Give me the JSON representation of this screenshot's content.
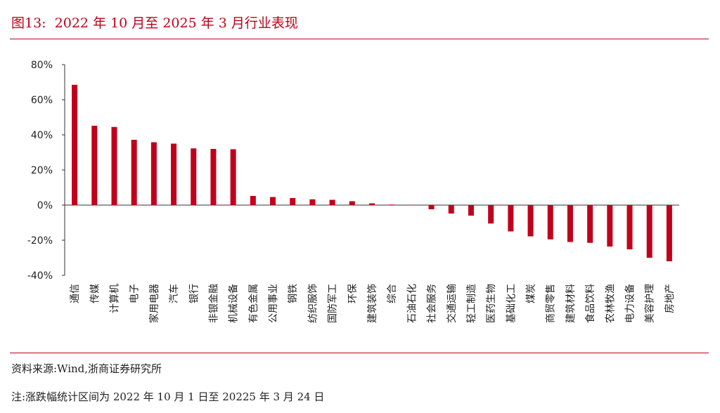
{
  "figure": {
    "title": "图13:  2022 年 10 月至 2025 年 3 月行业表现",
    "source": "资料来源:Wind,浙商证券研究所",
    "note": "注:涨跌幅统计区间为 2022 年 10 月 1 日至 20225 年 3 月 24 日"
  },
  "colors": {
    "accent": "#c0001a",
    "bar": "#c0001a",
    "axis": "#333333"
  },
  "chart_data": {
    "type": "bar",
    "title": "",
    "xlabel": "",
    "ylabel": "",
    "ylim": [
      -40,
      80
    ],
    "yticks": [
      80,
      60,
      40,
      20,
      0,
      -20,
      -40
    ],
    "ytick_labels": [
      "80%",
      "60%",
      "40%",
      "20%",
      "0%",
      "-20%",
      "-40%"
    ],
    "grid": false,
    "legend": "none",
    "categories": [
      "通信",
      "传媒",
      "计算机",
      "电子",
      "家用电器",
      "汽车",
      "银行",
      "非银金融",
      "机械设备",
      "有色金属",
      "公用事业",
      "钢铁",
      "纺织服饰",
      "国防军工",
      "环保",
      "建筑装饰",
      "综合",
      "石油石化",
      "社会服务",
      "交通运输",
      "轻工制造",
      "医药生物",
      "基础化工",
      "煤炭",
      "商贸零售",
      "建筑材料",
      "食品饮料",
      "农林牧渔",
      "电力设备",
      "美容护理",
      "房地产"
    ],
    "values": [
      68.5,
      45.2,
      44.5,
      37.2,
      35.8,
      35.0,
      32.3,
      32.0,
      31.8,
      5.2,
      4.6,
      4.0,
      3.3,
      3.0,
      2.2,
      1.0,
      0.3,
      0.0,
      -2.4,
      -4.8,
      -6.0,
      -10.5,
      -15.0,
      -17.8,
      -19.5,
      -21.0,
      -21.5,
      -23.6,
      -25.2,
      -30.0,
      -32.0
    ]
  }
}
